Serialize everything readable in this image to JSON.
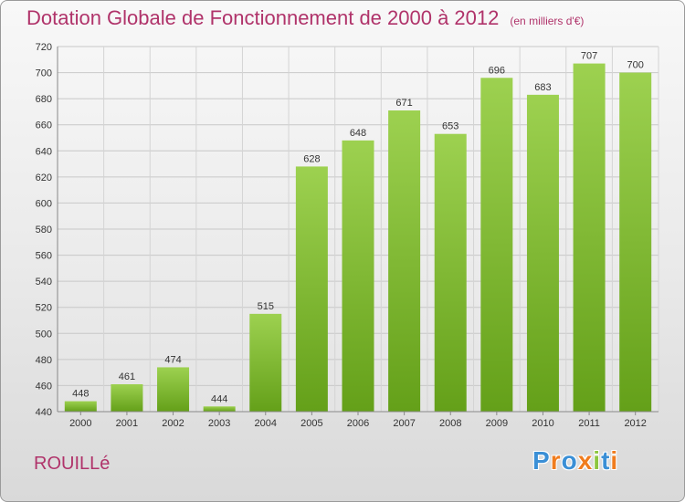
{
  "chart_data": {
    "type": "bar",
    "title": "Dotation Globale de Fonctionnement de 2000 à 2012",
    "subtitle": "(en milliers d'€)",
    "categories": [
      "2000",
      "2001",
      "2002",
      "2003",
      "2004",
      "2005",
      "2006",
      "2007",
      "2008",
      "2009",
      "2010",
      "2011",
      "2012"
    ],
    "values": [
      448,
      461,
      474,
      444,
      515,
      628,
      648,
      671,
      653,
      696,
      683,
      707,
      700
    ],
    "ylim": [
      440,
      720
    ],
    "yticks": [
      440,
      460,
      480,
      500,
      520,
      540,
      560,
      580,
      600,
      620,
      640,
      660,
      680,
      700,
      720
    ],
    "grid": true,
    "bar_color_top": "#9dd150",
    "bar_color_bottom": "#64a019"
  },
  "footer": {
    "city": "ROUILLé",
    "logo_text": "Proxiti",
    "logo_colors": [
      "#3a8fd6",
      "#f07c1e",
      "#3a8fd6",
      "#f07c1e",
      "#8cc63f",
      "#3a8fd6",
      "#f07c1e"
    ]
  }
}
